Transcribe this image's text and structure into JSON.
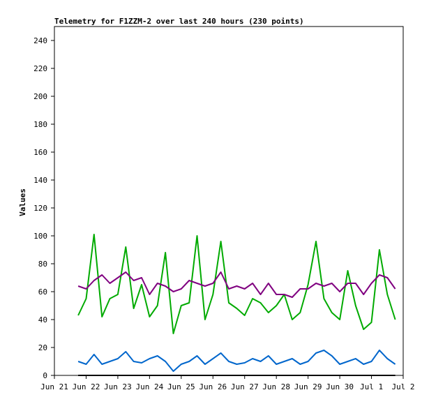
{
  "chart_data": {
    "type": "line",
    "title": "Telemetry for F1ZZM-2 over last 240 hours (230 points)",
    "xlabel": "",
    "ylabel": "Values",
    "xlim": [
      "Jun 21",
      "Jul 2"
    ],
    "x_ticks": [
      "Jun 21",
      "Jun 22",
      "Jun 23",
      "Jun 24",
      "Jun 25",
      "Jun 26",
      "Jun 27",
      "Jun 28",
      "Jun 29",
      "Jun 30",
      "Jul 1",
      "Jul 2"
    ],
    "ylim": [
      0,
      250
    ],
    "y_ticks": [
      0,
      20,
      40,
      60,
      80,
      100,
      120,
      140,
      160,
      180,
      200,
      220,
      240
    ],
    "grid": false,
    "legend": "none",
    "series": [
      {
        "color": "#00aa00",
        "x": [
          "Jun 21 18:00",
          "Jun 22 00:00",
          "Jun 22 06:00",
          "Jun 22 12:00",
          "Jun 22 18:00",
          "Jun 23 00:00",
          "Jun 23 06:00",
          "Jun 23 12:00",
          "Jun 23 18:00",
          "Jun 24 00:00",
          "Jun 24 06:00",
          "Jun 24 12:00",
          "Jun 24 18:00",
          "Jun 25 00:00",
          "Jun 25 06:00",
          "Jun 25 12:00",
          "Jun 25 18:00",
          "Jun 26 00:00",
          "Jun 26 06:00",
          "Jun 26 12:00",
          "Jun 26 18:00",
          "Jun 27 00:00",
          "Jun 27 06:00",
          "Jun 27 12:00",
          "Jun 27 18:00",
          "Jun 28 00:00",
          "Jun 28 06:00",
          "Jun 28 12:00",
          "Jun 28 18:00",
          "Jun 29 00:00",
          "Jun 29 06:00",
          "Jun 29 12:00",
          "Jun 29 18:00",
          "Jun 30 00:00",
          "Jun 30 06:00",
          "Jun 30 12:00",
          "Jun 30 18:00",
          "Jul 1 00:00",
          "Jul 1 06:00",
          "Jul 1 12:00",
          "Jul 1 18:00"
        ],
        "values": [
          43,
          55,
          101,
          42,
          55,
          58,
          92,
          48,
          65,
          42,
          50,
          88,
          30,
          50,
          52,
          100,
          40,
          58,
          96,
          52,
          48,
          43,
          55,
          52,
          45,
          50,
          58,
          40,
          45,
          65,
          96,
          55,
          45,
          40,
          75,
          50,
          33,
          38,
          90,
          58,
          40
        ]
      },
      {
        "color": "#800080",
        "x": [
          "Jun 21 18:00",
          "Jun 22 00:00",
          "Jun 22 06:00",
          "Jun 22 12:00",
          "Jun 22 18:00",
          "Jun 23 00:00",
          "Jun 23 06:00",
          "Jun 23 12:00",
          "Jun 23 18:00",
          "Jun 24 00:00",
          "Jun 24 06:00",
          "Jun 24 12:00",
          "Jun 24 18:00",
          "Jun 25 00:00",
          "Jun 25 06:00",
          "Jun 25 12:00",
          "Jun 25 18:00",
          "Jun 26 00:00",
          "Jun 26 06:00",
          "Jun 26 12:00",
          "Jun 26 18:00",
          "Jun 27 00:00",
          "Jun 27 06:00",
          "Jun 27 12:00",
          "Jun 27 18:00",
          "Jun 28 00:00",
          "Jun 28 06:00",
          "Jun 28 12:00",
          "Jun 28 18:00",
          "Jun 29 00:00",
          "Jun 29 06:00",
          "Jun 29 12:00",
          "Jun 29 18:00",
          "Jun 30 00:00",
          "Jun 30 06:00",
          "Jun 30 12:00",
          "Jun 30 18:00",
          "Jul 1 00:00",
          "Jul 1 06:00",
          "Jul 1 12:00",
          "Jul 1 18:00"
        ],
        "values": [
          64,
          62,
          68,
          72,
          66,
          70,
          74,
          68,
          70,
          58,
          66,
          64,
          60,
          62,
          68,
          66,
          64,
          66,
          74,
          62,
          64,
          62,
          66,
          58,
          66,
          58,
          58,
          56,
          62,
          62,
          66,
          64,
          66,
          60,
          66,
          66,
          58,
          66,
          72,
          70,
          62
        ]
      },
      {
        "color": "#0066cc",
        "x": [
          "Jun 21 18:00",
          "Jun 22 00:00",
          "Jun 22 06:00",
          "Jun 22 12:00",
          "Jun 22 18:00",
          "Jun 23 00:00",
          "Jun 23 06:00",
          "Jun 23 12:00",
          "Jun 23 18:00",
          "Jun 24 00:00",
          "Jun 24 06:00",
          "Jun 24 12:00",
          "Jun 24 18:00",
          "Jun 25 00:00",
          "Jun 25 06:00",
          "Jun 25 12:00",
          "Jun 25 18:00",
          "Jun 26 00:00",
          "Jun 26 06:00",
          "Jun 26 12:00",
          "Jun 26 18:00",
          "Jun 27 00:00",
          "Jun 27 06:00",
          "Jun 27 12:00",
          "Jun 27 18:00",
          "Jun 28 00:00",
          "Jun 28 06:00",
          "Jun 28 12:00",
          "Jun 28 18:00",
          "Jun 29 00:00",
          "Jun 29 06:00",
          "Jun 29 12:00",
          "Jun 29 18:00",
          "Jun 30 00:00",
          "Jun 30 06:00",
          "Jun 30 12:00",
          "Jun 30 18:00",
          "Jul 1 00:00",
          "Jul 1 06:00",
          "Jul 1 12:00",
          "Jul 1 18:00"
        ],
        "values": [
          10,
          8,
          15,
          8,
          10,
          12,
          17,
          10,
          9,
          12,
          14,
          10,
          3,
          8,
          10,
          14,
          8,
          12,
          16,
          10,
          8,
          9,
          12,
          10,
          14,
          8,
          10,
          12,
          8,
          10,
          16,
          18,
          14,
          8,
          10,
          12,
          8,
          10,
          18,
          12,
          8
        ]
      },
      {
        "color": "#000000",
        "x": [
          "Jun 21 18:00",
          "Jul 1 18:00"
        ],
        "values": [
          0,
          0
        ]
      }
    ]
  }
}
